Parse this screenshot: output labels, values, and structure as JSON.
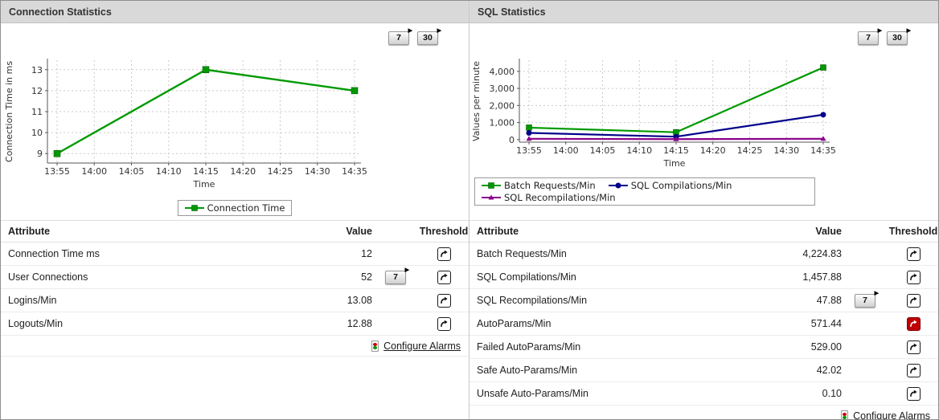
{
  "colors": {
    "header_bg": "#d9d9d9",
    "series_green": "#009900",
    "series_navy": "#00008b",
    "series_purple": "#8b008b",
    "alarm_red": "#c00000"
  },
  "icons": {
    "threshold": "trend-arrow-icon",
    "configure_alarms": "traffic-light-icon",
    "period_button_marker": "play-arrow-icon"
  },
  "panels": [
    {
      "title": "Connection Statistics",
      "toolbar": {
        "buttons": [
          "7",
          "30"
        ]
      },
      "table": {
        "headers": {
          "attribute": "Attribute",
          "value": "Value",
          "threshold": "Threshold"
        },
        "rows": [
          {
            "attribute": "Connection Time ms",
            "value": "12",
            "period_button": "",
            "threshold_state": "normal"
          },
          {
            "attribute": "User Connections",
            "value": "52",
            "period_button": "7",
            "threshold_state": "normal"
          },
          {
            "attribute": "Logins/Min",
            "value": "13.08",
            "period_button": "",
            "threshold_state": "normal"
          },
          {
            "attribute": "Logouts/Min",
            "value": "12.88",
            "period_button": "",
            "threshold_state": "normal"
          }
        ],
        "footer_link": "Configure Alarms"
      }
    },
    {
      "title": "SQL Statistics",
      "toolbar": {
        "buttons": [
          "7",
          "30"
        ]
      },
      "table": {
        "headers": {
          "attribute": "Attribute",
          "value": "Value",
          "threshold": "Threshold"
        },
        "rows": [
          {
            "attribute": "Batch Requests/Min",
            "value": "4,224.83",
            "period_button": "",
            "threshold_state": "normal"
          },
          {
            "attribute": "SQL Compilations/Min",
            "value": "1,457.88",
            "period_button": "",
            "threshold_state": "normal"
          },
          {
            "attribute": "SQL Recompilations/Min",
            "value": "47.88",
            "period_button": "7",
            "threshold_state": "normal"
          },
          {
            "attribute": "AutoParams/Min",
            "value": "571.44",
            "period_button": "",
            "threshold_state": "critical"
          },
          {
            "attribute": "Failed AutoParams/Min",
            "value": "529.00",
            "period_button": "",
            "threshold_state": "normal"
          },
          {
            "attribute": "Safe Auto-Params/Min",
            "value": "42.02",
            "period_button": "",
            "threshold_state": "normal"
          },
          {
            "attribute": "Unsafe Auto-Params/Min",
            "value": "0.10",
            "period_button": "",
            "threshold_state": "normal"
          }
        ],
        "footer_link": "Configure Alarms"
      }
    }
  ],
  "chart_data": [
    {
      "type": "line",
      "title": "",
      "xlabel": "Time",
      "ylabel": "Connection Time in ms",
      "x_ticks": [
        "13:55",
        "14:00",
        "14:05",
        "14:10",
        "14:15",
        "14:20",
        "14:25",
        "14:30",
        "14:35"
      ],
      "y_ticks": {
        "values": [
          9,
          10,
          11,
          12,
          13
        ],
        "labels": [
          "9",
          "10",
          "11",
          "12",
          "13"
        ]
      },
      "ylim": [
        8.55,
        13.45
      ],
      "grid": true,
      "legend_position": "bottom-center",
      "series": [
        {
          "name": "Connection Time",
          "color": "#009900",
          "marker": "square",
          "points": [
            {
              "x": "13:55",
              "v": 9
            },
            {
              "x": "14:15",
              "v": 13
            },
            {
              "x": "14:35",
              "v": 12
            }
          ]
        }
      ]
    },
    {
      "type": "line",
      "title": "",
      "xlabel": "Time",
      "ylabel": "Values per minute",
      "x_ticks": [
        "13:55",
        "14:00",
        "14:05",
        "14:10",
        "14:15",
        "14:20",
        "14:25",
        "14:30",
        "14:35"
      ],
      "y_ticks": {
        "values": [
          0,
          1000,
          2000,
          3000,
          4000
        ],
        "labels": [
          "0",
          "1,000",
          "2,000",
          "3,000",
          "4,000"
        ]
      },
      "ylim": [
        -150,
        4650
      ],
      "grid": true,
      "legend_position": "bottom-left-block",
      "series": [
        {
          "name": "Batch Requests/Min",
          "color": "#009900",
          "marker": "square",
          "points": [
            {
              "x": "13:55",
              "v": 700
            },
            {
              "x": "14:15",
              "v": 430
            },
            {
              "x": "14:35",
              "v": 4224.83
            }
          ]
        },
        {
          "name": "SQL Compilations/Min",
          "color": "#00008b",
          "marker": "circle",
          "points": [
            {
              "x": "13:55",
              "v": 390
            },
            {
              "x": "14:15",
              "v": 170
            },
            {
              "x": "14:35",
              "v": 1457.88
            }
          ]
        },
        {
          "name": "SQL Recompilations/Min",
          "color": "#8b008b",
          "marker": "triangle",
          "points": [
            {
              "x": "13:55",
              "v": 48
            },
            {
              "x": "14:15",
              "v": 25
            },
            {
              "x": "14:35",
              "v": 47.88
            }
          ]
        }
      ]
    }
  ]
}
